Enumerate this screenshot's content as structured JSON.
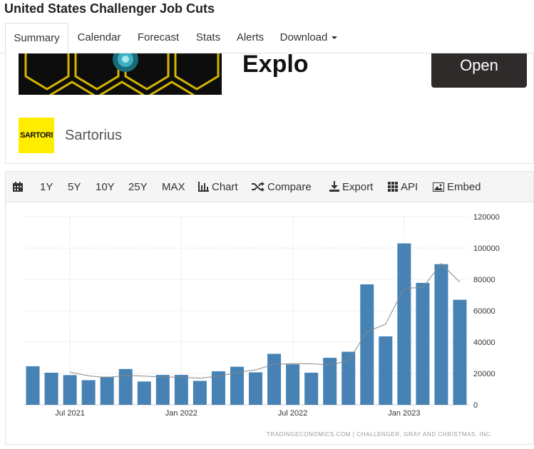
{
  "page": {
    "title": "United States Challenger Job Cuts"
  },
  "nav": {
    "tabs": [
      "Summary",
      "Calendar",
      "Forecast",
      "Stats",
      "Alerts",
      "Download"
    ]
  },
  "ad": {
    "headline": "Explo",
    "button": "Open",
    "logo_text": "SARTORI",
    "brand": "Sartorius"
  },
  "toolbar": {
    "items": [
      "1Y",
      "5Y",
      "10Y",
      "25Y",
      "MAX",
      "Chart",
      "Compare",
      "Export",
      "API",
      "Embed"
    ]
  },
  "colors": {
    "bar": "#4682b4",
    "moving_average": "#888888",
    "ad_logo": "#ffed00",
    "button": "#2f2b2b"
  },
  "chart_data": {
    "type": "bar",
    "categories": [
      "2021-05",
      "2021-06",
      "2021-07",
      "2021-08",
      "2021-09",
      "2021-10",
      "2021-11",
      "2021-12",
      "2022-01",
      "2022-02",
      "2022-03",
      "2022-04",
      "2022-05",
      "2022-06",
      "2022-07",
      "2022-08",
      "2022-09",
      "2022-10",
      "2022-11",
      "2022-12",
      "2023-01",
      "2023-02",
      "2023-03",
      "2023-04"
    ],
    "series": [
      {
        "type": "bar",
        "values": [
          24586,
          20476,
          18942,
          15723,
          17895,
          22822,
          14875,
          19052,
          19064,
          15245,
          21387,
          24286,
          20712,
          32517,
          25810,
          20485,
          29989,
          33843,
          76835,
          43651,
          102943,
          77770,
          89703,
          66995
        ]
      },
      {
        "type": "line",
        "values": [
          null,
          null,
          20800,
          18500,
          17400,
          18800,
          18300,
          17700,
          17700,
          17000,
          18300,
          20600,
          22300,
          25800,
          26300,
          26200,
          25400,
          28100,
          46700,
          51400,
          74300,
          74800,
          90100,
          78200
        ]
      }
    ],
    "x_tick_labels": [
      "Jul 2021",
      "Jan 2022",
      "Jul 2022",
      "Jan 2023"
    ],
    "y_tick_labels": [
      "0",
      "20000",
      "40000",
      "60000",
      "80000",
      "100000",
      "120000"
    ],
    "ylim": [
      0,
      120000
    ],
    "grid": true,
    "source": "TRADINGECONOMICS.COM | CHALLENGER, GRAY AND CHRISTMAS, INC."
  }
}
